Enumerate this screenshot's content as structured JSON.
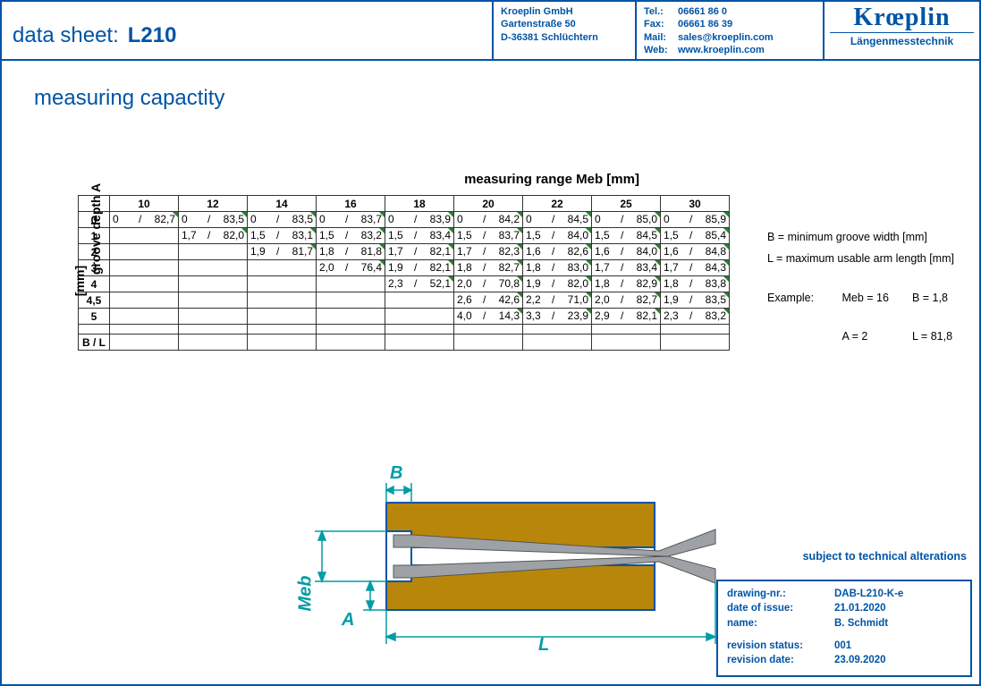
{
  "header": {
    "title_label": "data sheet:",
    "title_value": "L210",
    "addr": {
      "company": "Kroeplin GmbH",
      "street": "Gartenstraße 50",
      "city": "D-36381 Schlüchtern"
    },
    "contact": {
      "tel_k": "Tel.:",
      "tel": "06661 86 0",
      "fax_k": "Fax:",
      "fax": "06661 86 39",
      "mail_k": "Mail:",
      "mail": "sales@kroeplin.com",
      "web_k": "Web:",
      "web": "www.kroeplin.com"
    },
    "logo_brand": "Krœplin",
    "logo_tag": "Längenmesstechnik"
  },
  "section_title": "measuring capactity",
  "table": {
    "caption": "measuring range Meb [mm]",
    "ylabel": "groove depth A",
    "yunit": "[mm]",
    "cols": [
      "10",
      "12",
      "14",
      "16",
      "18",
      "20",
      "22",
      "25",
      "30"
    ],
    "row_heads": [
      "0",
      "1",
      "2",
      "3",
      "4",
      "4,5",
      "5"
    ],
    "footer_head": "B / L",
    "cells": [
      [
        [
          "0",
          "82,7"
        ],
        [
          "0",
          "83,5"
        ],
        [
          "0",
          "83,5"
        ],
        [
          "0",
          "83,7"
        ],
        [
          "0",
          "83,9"
        ],
        [
          "0",
          "84,2"
        ],
        [
          "0",
          "84,5"
        ],
        [
          "0",
          "85,0"
        ],
        [
          "0",
          "85,9"
        ]
      ],
      [
        null,
        [
          "1,7",
          "82,0"
        ],
        [
          "1,5",
          "83,1"
        ],
        [
          "1,5",
          "83,2"
        ],
        [
          "1,5",
          "83,4"
        ],
        [
          "1,5",
          "83,7"
        ],
        [
          "1,5",
          "84,0"
        ],
        [
          "1,5",
          "84,5"
        ],
        [
          "1,5",
          "85,4"
        ]
      ],
      [
        null,
        null,
        [
          "1,9",
          "81,7"
        ],
        [
          "1,8",
          "81,8"
        ],
        [
          "1,7",
          "82,1"
        ],
        [
          "1,7",
          "82,3"
        ],
        [
          "1,6",
          "82,6"
        ],
        [
          "1,6",
          "84,0"
        ],
        [
          "1,6",
          "84,8"
        ]
      ],
      [
        null,
        null,
        null,
        [
          "2,0",
          "76,4"
        ],
        [
          "1,9",
          "82,1"
        ],
        [
          "1,8",
          "82,7"
        ],
        [
          "1,8",
          "83,0"
        ],
        [
          "1,7",
          "83,4"
        ],
        [
          "1,7",
          "84,3"
        ]
      ],
      [
        null,
        null,
        null,
        null,
        [
          "2,3",
          "52,1"
        ],
        [
          "2,0",
          "70,8"
        ],
        [
          "1,9",
          "82,0"
        ],
        [
          "1,8",
          "82,9"
        ],
        [
          "1,8",
          "83,8"
        ]
      ],
      [
        null,
        null,
        null,
        null,
        null,
        [
          "2,6",
          "42,6"
        ],
        [
          "2,2",
          "71,0"
        ],
        [
          "2,0",
          "82,7"
        ],
        [
          "1,9",
          "83,5"
        ]
      ],
      [
        null,
        null,
        null,
        null,
        null,
        [
          "4,0",
          "14,3"
        ],
        [
          "3,3",
          "23,9"
        ],
        [
          "2,9",
          "82,1"
        ],
        [
          "2,3",
          "83,2"
        ]
      ]
    ]
  },
  "legend": {
    "b": "B = minimum groove width [mm]",
    "l": "L = maximum usable arm length [mm]",
    "ex_lbl": "Example:",
    "ex": [
      [
        "Meb = 16",
        "B = 1,8"
      ],
      [
        "A = 2",
        "L = 81,8"
      ]
    ]
  },
  "diagram": {
    "labels": {
      "B": "B",
      "A": "A",
      "Meb": "Meb",
      "L": "L"
    },
    "colors": {
      "dim": "#009ca6",
      "block_fill": "#b8860b",
      "block_stroke": "#0054a6",
      "probe": "#9ea2a6",
      "probe_dark": "#6d7175"
    }
  },
  "subject": "subject to technical alterations",
  "footbox": {
    "rows": [
      [
        "drawing-nr.:",
        "DAB-L210-K-e"
      ],
      [
        "date of issue:",
        "21.01.2020"
      ],
      [
        "name:",
        "B. Schmidt"
      ]
    ],
    "rows2": [
      [
        "revision status:",
        "001"
      ],
      [
        "revision date:",
        "23.09.2020"
      ]
    ]
  }
}
